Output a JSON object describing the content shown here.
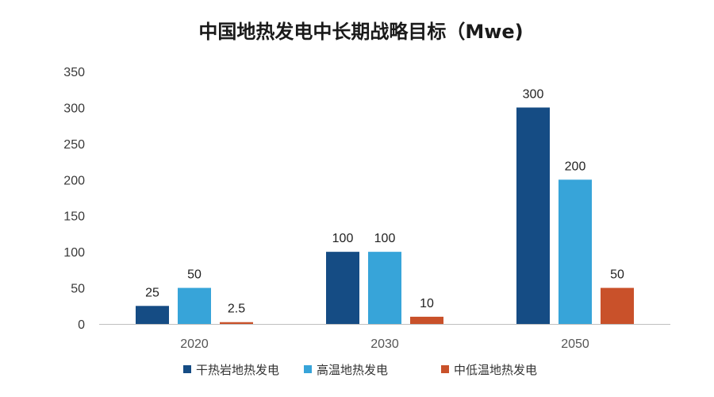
{
  "chart_data": {
    "type": "bar",
    "title": "中国地热发电中长期战略目标（Mwe)",
    "xlabel": "",
    "ylabel": "",
    "categories": [
      "2020",
      "2030",
      "2050"
    ],
    "series": [
      {
        "name": "干热岩地热发电",
        "color": "#154C84",
        "values": [
          25,
          100,
          300
        ],
        "labels": [
          "25",
          "100",
          "300"
        ]
      },
      {
        "name": "高温地热发电",
        "color": "#37A4D9",
        "values": [
          50,
          100,
          200
        ],
        "labels": [
          "50",
          "100",
          "200"
        ]
      },
      {
        "name": "中低温地热发电",
        "color": "#C9512A",
        "values": [
          2.5,
          10,
          50
        ],
        "labels": [
          "2.5",
          "10",
          "50"
        ]
      }
    ],
    "ylim": [
      0,
      350
    ],
    "yticks": [
      0,
      50,
      100,
      150,
      200,
      250,
      300,
      350
    ],
    "grid": false,
    "legend": "bottom",
    "axis_color": "#bfbfbf"
  }
}
